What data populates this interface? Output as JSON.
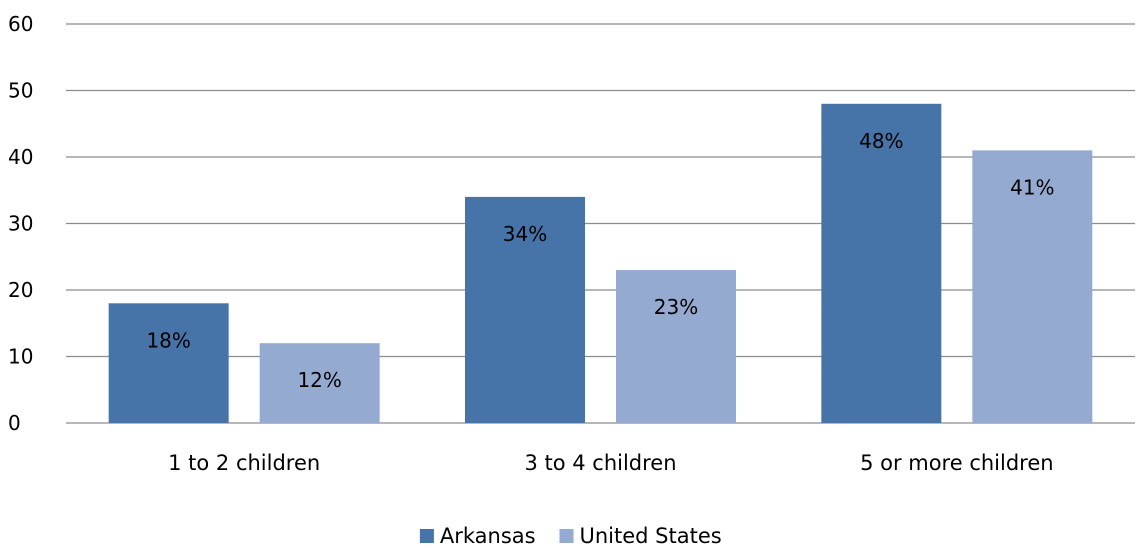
{
  "chart_data": {
    "type": "bar",
    "title": "",
    "xlabel": "",
    "ylabel": "",
    "categories": [
      "1 to 2 children",
      "3 to 4 children",
      "5 or more children"
    ],
    "series": [
      {
        "name": "Arkansas",
        "color": "#4673A8",
        "values": [
          18,
          34,
          48
        ],
        "labels": [
          "18%",
          "34%",
          "48%"
        ]
      },
      {
        "name": "United States",
        "color": "#95AAD1",
        "values": [
          12,
          23,
          41
        ],
        "labels": [
          "12%",
          "23%",
          "41%"
        ]
      }
    ],
    "ylim": [
      0,
      60
    ],
    "yticks": [
      0,
      10,
      20,
      30,
      40,
      50,
      60
    ],
    "grid": true,
    "legend": "bottom-center"
  }
}
